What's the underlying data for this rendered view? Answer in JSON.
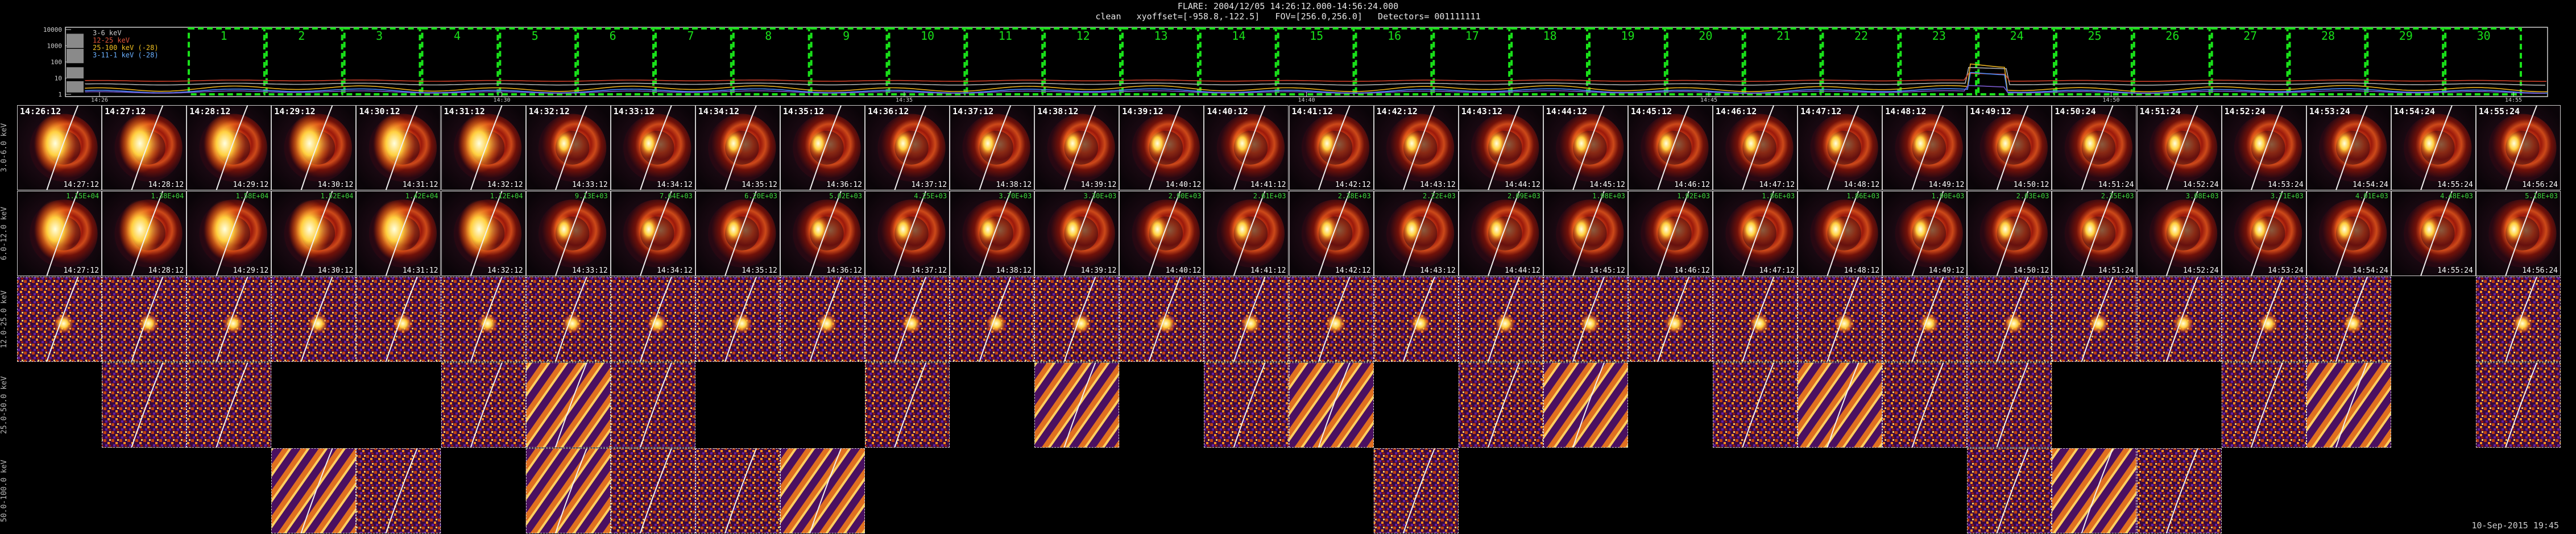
{
  "header": {
    "title": "FLARE: 2004/12/05 14:26:12.000-14:56:24.000",
    "subtitle": "clean   xyoffset=[-958.8,-122.5]   FOV=[256.0,256.0]   Detectors= 001111111"
  },
  "lightcurve": {
    "y_ticks": [
      "10000",
      "1000",
      "100",
      "10",
      "1"
    ],
    "x_ticks": [
      "14:26",
      "14:30",
      "14:35",
      "14:40",
      "14:45",
      "14:50",
      "14:55"
    ],
    "legend": [
      {
        "label": "3-6 keV",
        "color": "#c8c8c8"
      },
      {
        "label": "12-25 keV",
        "color": "#e2553a"
      },
      {
        "label": "25-100 keV (-28)",
        "color": "#f0c020"
      },
      {
        "label": "3-11-1 keV (-28)",
        "color": "#6ab0ff"
      }
    ],
    "interval_numbers": [
      "1",
      "2",
      "3",
      "4",
      "5",
      "6",
      "7",
      "8",
      "9",
      "10",
      "11",
      "12",
      "13",
      "14",
      "15",
      "16",
      "17",
      "18",
      "19",
      "20",
      "21",
      "22",
      "23",
      "24",
      "25",
      "26",
      "27",
      "28",
      "29",
      "30"
    ],
    "box_color": "#19e019",
    "curve_colors": {
      "c1": "#b0b0b0",
      "c2": "#d0402a",
      "c3": "#e8b020",
      "c4": "#4a8cff",
      "c5": "#7a5ad0"
    }
  },
  "bands": [
    {
      "label": "3.0-6.0 keV"
    },
    {
      "label": "6.0-12.0 keV"
    },
    {
      "label": "12.0-25.0 keV"
    },
    {
      "label": "25.0-50.0 keV"
    },
    {
      "label": "50.0-100.0 keV"
    }
  ],
  "start_times": [
    "14:26:12",
    "14:27:12",
    "14:28:12",
    "14:29:12",
    "14:30:12",
    "14:31:12",
    "14:32:12",
    "14:33:12",
    "14:34:12",
    "14:35:12",
    "14:36:12",
    "14:37:12",
    "14:38:12",
    "14:39:12",
    "14:40:12",
    "14:41:12",
    "14:42:12",
    "14:43:12",
    "14:44:12",
    "14:45:12",
    "14:46:12",
    "14:47:12",
    "14:48:12",
    "14:49:12",
    "14:50:24",
    "14:51:24",
    "14:52:24",
    "14:53:24",
    "14:54:24",
    "14:55:24"
  ],
  "end_times": [
    "14:27:12",
    "14:28:12",
    "14:29:12",
    "14:30:12",
    "14:31:12",
    "14:32:12",
    "14:33:12",
    "14:34:12",
    "14:35:12",
    "14:36:12",
    "14:37:12",
    "14:38:12",
    "14:39:12",
    "14:40:12",
    "14:41:12",
    "14:42:12",
    "14:43:12",
    "14:44:12",
    "14:45:12",
    "14:46:12",
    "14:47:12",
    "14:48:12",
    "14:49:12",
    "14:50:12",
    "14:51:24",
    "14:52:24",
    "14:53:24",
    "14:54:24",
    "14:55:24",
    "14:56:24"
  ],
  "flux_row2": [
    "1.15E+04",
    "1.38E+04",
    "1.58E+04",
    "1.52E+04",
    "1.42E+04",
    "1.12E+04",
    "9.13E+03",
    "7.64E+03",
    "6.20E+03",
    "5.02E+03",
    "4.25E+03",
    "3.70E+03",
    "3.30E+03",
    "2.90E+03",
    "2.61E+03",
    "2.38E+03",
    "2.22E+03",
    "2.09E+03",
    "1.98E+03",
    "1.92E+03",
    "1.86E+03",
    "1.86E+03",
    "1.90E+03",
    "2.03E+03",
    "2.35E+03",
    "3.08E+03",
    "3.71E+03",
    "4.01E+03",
    "4.48E+03",
    "5.18E+03"
  ],
  "presence": [
    [
      1,
      1,
      1,
      1,
      1,
      1,
      1,
      1,
      1,
      1,
      1,
      1,
      1,
      1,
      1,
      1,
      1,
      1,
      1,
      1,
      1,
      1,
      1,
      1,
      1,
      1,
      1,
      1,
      1,
      1
    ],
    [
      1,
      1,
      1,
      1,
      1,
      1,
      1,
      1,
      1,
      1,
      1,
      1,
      1,
      1,
      1,
      1,
      1,
      1,
      1,
      1,
      1,
      1,
      1,
      1,
      1,
      1,
      1,
      1,
      1,
      1
    ],
    [
      1,
      1,
      1,
      1,
      1,
      1,
      1,
      1,
      1,
      1,
      1,
      1,
      1,
      1,
      1,
      1,
      1,
      1,
      1,
      1,
      1,
      1,
      1,
      1,
      1,
      1,
      1,
      1,
      0,
      1
    ],
    [
      0,
      1,
      1,
      0,
      0,
      1,
      1,
      1,
      0,
      0,
      1,
      0,
      1,
      0,
      1,
      1,
      0,
      1,
      1,
      0,
      1,
      1,
      1,
      1,
      0,
      0,
      1,
      1,
      0,
      1
    ],
    [
      0,
      0,
      0,
      1,
      1,
      0,
      1,
      1,
      1,
      1,
      0,
      0,
      0,
      0,
      0,
      0,
      1,
      0,
      0,
      0,
      0,
      0,
      0,
      1,
      1,
      1,
      0,
      0,
      0,
      0
    ]
  ],
  "footer": {
    "date": "10-Sep-2015 19:45"
  }
}
